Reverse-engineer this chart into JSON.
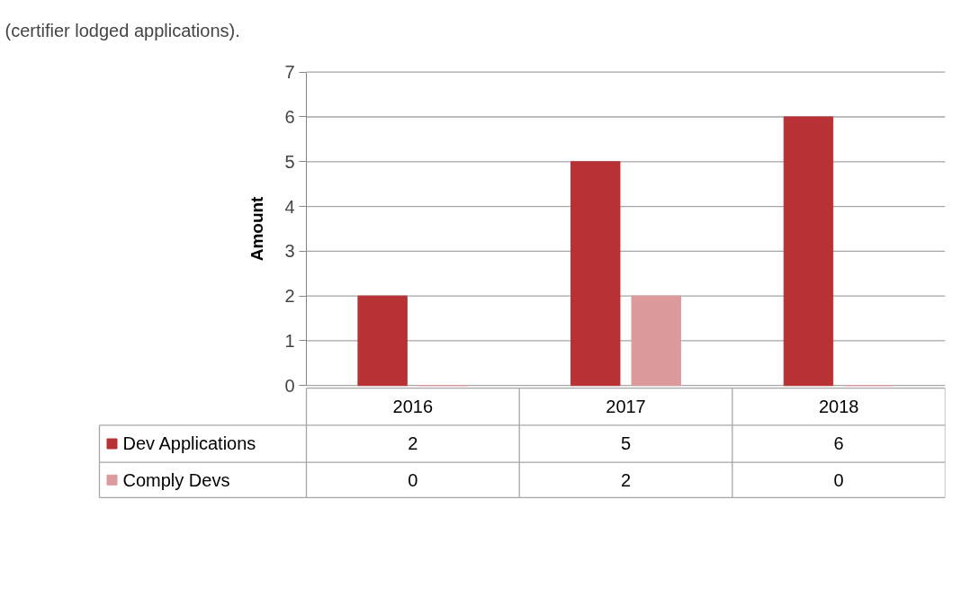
{
  "chart_data": {
    "type": "bar",
    "ylabel": "Amount",
    "annotations": [
      "(certifier lodged applications)."
    ],
    "categories": [
      "2016",
      "2017",
      "2018"
    ],
    "series": [
      {
        "name": "Dev Applications",
        "color": "#b83235",
        "values": [
          2,
          5,
          6
        ]
      },
      {
        "name": "Comply Devs",
        "color": "#dc9a9c",
        "values": [
          0,
          2,
          0
        ]
      }
    ],
    "ylim": [
      0,
      7
    ],
    "yticks": [
      0,
      1,
      2,
      3,
      4,
      5,
      6,
      7
    ],
    "grid": "y",
    "legend": "bottom",
    "data_labels": true
  }
}
